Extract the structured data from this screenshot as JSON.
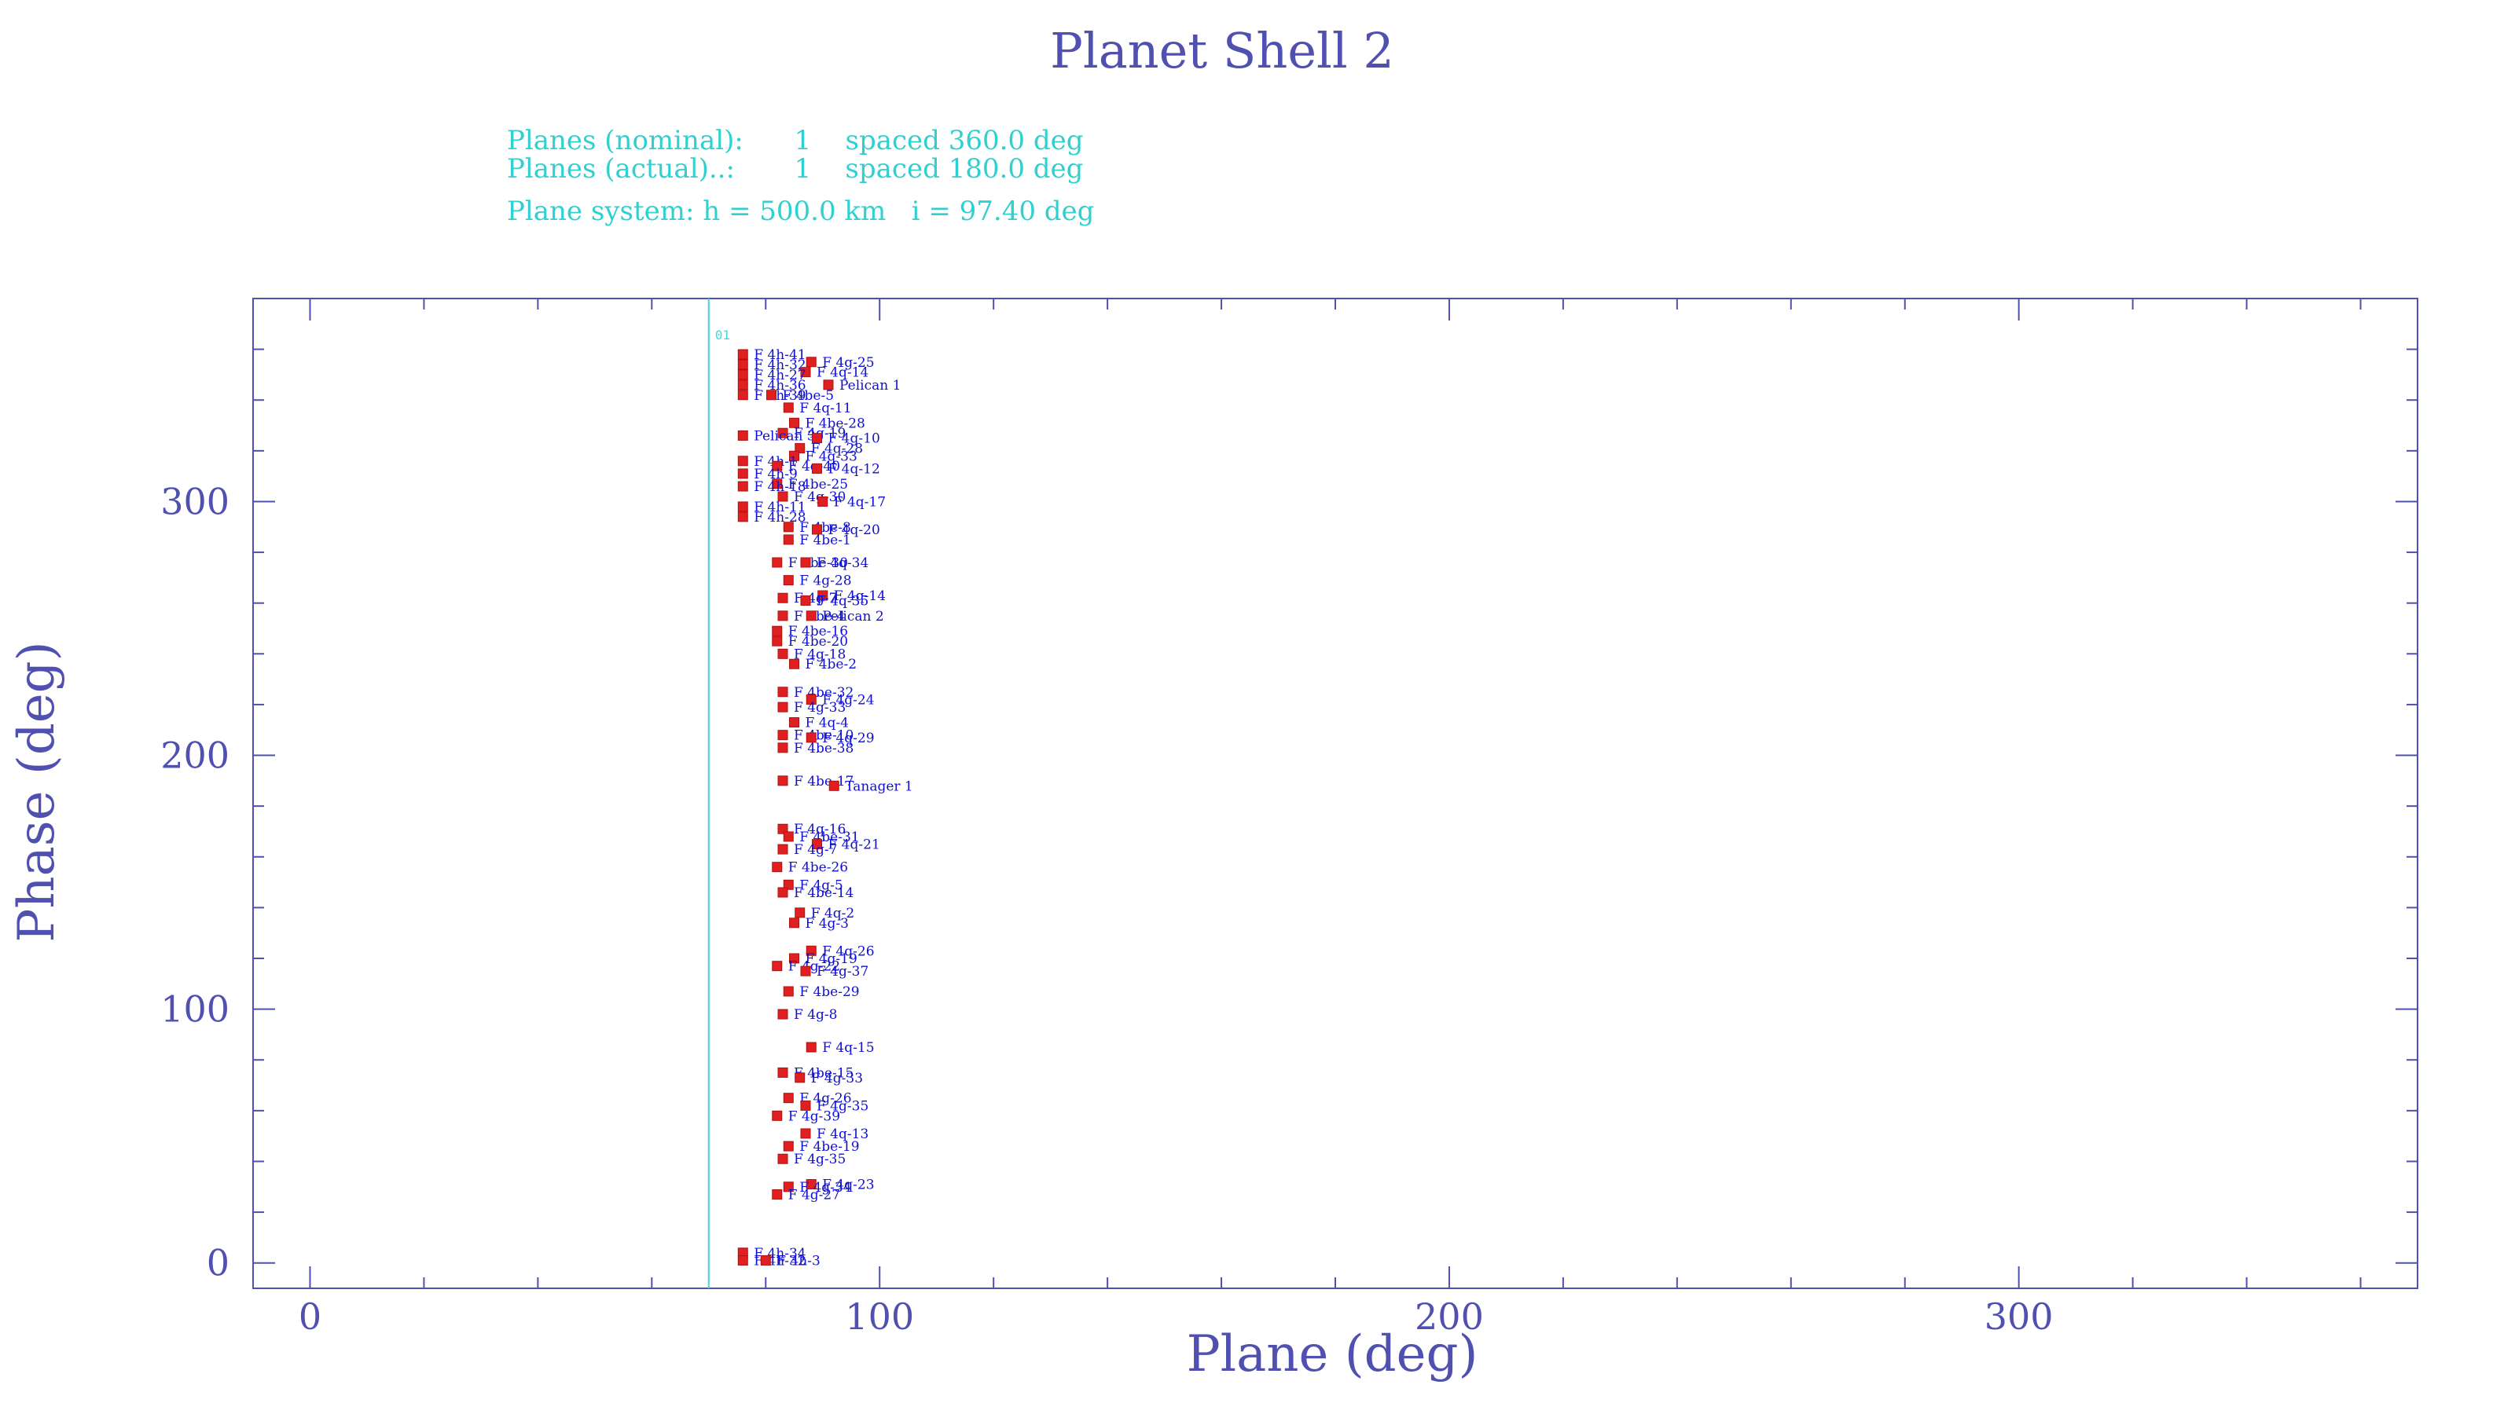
{
  "chart_data": {
    "type": "scatter",
    "title": "Planet Shell 2",
    "info_lines": [
      "Planes (nominal):      1    spaced 360.0 deg",
      "Planes (actual)..:       1    spaced 180.0 deg",
      "Plane system: h = 500.0 km   i = 97.40 deg"
    ],
    "xlabel": "Plane (deg)",
    "ylabel": "Phase (deg)",
    "xlim": [
      -10,
      370
    ],
    "ylim": [
      -10,
      380
    ],
    "x_ticks": [
      0,
      100,
      200,
      300
    ],
    "y_ticks": [
      0,
      100,
      200,
      300
    ],
    "plane_line": {
      "x": 70,
      "label": "01"
    },
    "colors": {
      "axis": "#5050b0",
      "marker": "#e02020",
      "label": "#1010d0",
      "info": "#30d0d0",
      "plane_line": "#40d8d8"
    },
    "points": [
      {
        "x": 76,
        "y": 358,
        "label": "F 4h-41"
      },
      {
        "x": 88,
        "y": 355,
        "label": "F 4g-25"
      },
      {
        "x": 76,
        "y": 354,
        "label": "F 4h-32"
      },
      {
        "x": 87,
        "y": 351,
        "label": "F 4q-14"
      },
      {
        "x": 76,
        "y": 350,
        "label": "F 4h-27"
      },
      {
        "x": 76,
        "y": 346,
        "label": "F 4h-36"
      },
      {
        "x": 91,
        "y": 346,
        "label": "Pelican 1"
      },
      {
        "x": 76,
        "y": 342,
        "label": "F 4h-39"
      },
      {
        "x": 81,
        "y": 342,
        "label": "F 4be-5"
      },
      {
        "x": 84,
        "y": 337,
        "label": "F 4q-11"
      },
      {
        "x": 85,
        "y": 331,
        "label": "F 4be-28"
      },
      {
        "x": 83,
        "y": 327,
        "label": "F 4g-19"
      },
      {
        "x": 76,
        "y": 326,
        "label": "Pelican 3"
      },
      {
        "x": 89,
        "y": 325,
        "label": "F 4g-10"
      },
      {
        "x": 86,
        "y": 321,
        "label": "F 4q-28"
      },
      {
        "x": 85,
        "y": 318,
        "label": "F 4q-33"
      },
      {
        "x": 76,
        "y": 316,
        "label": "F 4h-1"
      },
      {
        "x": 82,
        "y": 314,
        "label": "F 4q-40"
      },
      {
        "x": 89,
        "y": 313,
        "label": "F 4q-12"
      },
      {
        "x": 76,
        "y": 311,
        "label": "F 4h-9"
      },
      {
        "x": 82,
        "y": 307,
        "label": "F 4be-25"
      },
      {
        "x": 76,
        "y": 306,
        "label": "F 4h-18"
      },
      {
        "x": 83,
        "y": 302,
        "label": "F 4g-30"
      },
      {
        "x": 90,
        "y": 300,
        "label": "F 4q-17"
      },
      {
        "x": 76,
        "y": 298,
        "label": "F 4h-11"
      },
      {
        "x": 76,
        "y": 294,
        "label": "F 4h-28"
      },
      {
        "x": 84,
        "y": 290,
        "label": "F 4be-8"
      },
      {
        "x": 89,
        "y": 289,
        "label": "F 4q-20"
      },
      {
        "x": 84,
        "y": 285,
        "label": "F 4be-1"
      },
      {
        "x": 82,
        "y": 276,
        "label": "F 4be-30"
      },
      {
        "x": 87,
        "y": 276,
        "label": "F 4q-34"
      },
      {
        "x": 84,
        "y": 269,
        "label": "F 4g-28"
      },
      {
        "x": 90,
        "y": 263,
        "label": "F 4q-14"
      },
      {
        "x": 83,
        "y": 262,
        "label": "F 4g-7"
      },
      {
        "x": 87,
        "y": 261,
        "label": "F 4q-35"
      },
      {
        "x": 83,
        "y": 255,
        "label": "F 4be-4"
      },
      {
        "x": 88,
        "y": 255,
        "label": "Pelican 2"
      },
      {
        "x": 82,
        "y": 249,
        "label": "F 4be-16"
      },
      {
        "x": 82,
        "y": 245,
        "label": "F 4be-20"
      },
      {
        "x": 83,
        "y": 240,
        "label": "F 4g-18"
      },
      {
        "x": 85,
        "y": 236,
        "label": "F 4be-2"
      },
      {
        "x": 83,
        "y": 225,
        "label": "F 4be-32"
      },
      {
        "x": 88,
        "y": 222,
        "label": "F 4g-24"
      },
      {
        "x": 83,
        "y": 219,
        "label": "F 4g-33"
      },
      {
        "x": 85,
        "y": 213,
        "label": "F 4q-4"
      },
      {
        "x": 83,
        "y": 208,
        "label": "F 4be-10"
      },
      {
        "x": 88,
        "y": 207,
        "label": "F 4q-29"
      },
      {
        "x": 83,
        "y": 203,
        "label": "F 4be-38"
      },
      {
        "x": 83,
        "y": 190,
        "label": "F 4be-17"
      },
      {
        "x": 92,
        "y": 188,
        "label": "Tanager 1"
      },
      {
        "x": 83,
        "y": 171,
        "label": "F 4q-16"
      },
      {
        "x": 84,
        "y": 168,
        "label": "F 4be-31"
      },
      {
        "x": 89,
        "y": 165,
        "label": "F 4q-21"
      },
      {
        "x": 83,
        "y": 163,
        "label": "F 4g-7"
      },
      {
        "x": 82,
        "y": 156,
        "label": "F 4be-26"
      },
      {
        "x": 84,
        "y": 149,
        "label": "F 4g-5"
      },
      {
        "x": 83,
        "y": 146,
        "label": "F 4be-14"
      },
      {
        "x": 86,
        "y": 138,
        "label": "F 4q-2"
      },
      {
        "x": 85,
        "y": 134,
        "label": "F 4g-3"
      },
      {
        "x": 88,
        "y": 123,
        "label": "F 4q-26"
      },
      {
        "x": 85,
        "y": 120,
        "label": "F 4g-19"
      },
      {
        "x": 82,
        "y": 117,
        "label": "F 4g-22"
      },
      {
        "x": 87,
        "y": 115,
        "label": "F 4g-37"
      },
      {
        "x": 84,
        "y": 107,
        "label": "F 4be-29"
      },
      {
        "x": 83,
        "y": 98,
        "label": "F 4g-8"
      },
      {
        "x": 88,
        "y": 85,
        "label": "F 4q-15"
      },
      {
        "x": 83,
        "y": 75,
        "label": "F 4be-15"
      },
      {
        "x": 86,
        "y": 73,
        "label": "F 4g-33"
      },
      {
        "x": 84,
        "y": 65,
        "label": "F 4g-26"
      },
      {
        "x": 87,
        "y": 62,
        "label": "F 4g-35"
      },
      {
        "x": 82,
        "y": 58,
        "label": "F 4g-39"
      },
      {
        "x": 87,
        "y": 51,
        "label": "F 4q-13"
      },
      {
        "x": 84,
        "y": 46,
        "label": "F 4be-19"
      },
      {
        "x": 83,
        "y": 41,
        "label": "F 4g-35"
      },
      {
        "x": 88,
        "y": 31,
        "label": "F 4q-23"
      },
      {
        "x": 84,
        "y": 30,
        "label": "F 4g-34"
      },
      {
        "x": 82,
        "y": 27,
        "label": "F 4g-27"
      },
      {
        "x": 76,
        "y": 4,
        "label": "F 4h-34"
      },
      {
        "x": 76,
        "y": 1,
        "label": "F 4h-32"
      },
      {
        "x": 80,
        "y": 1,
        "label": "F 4h-3"
      }
    ]
  }
}
